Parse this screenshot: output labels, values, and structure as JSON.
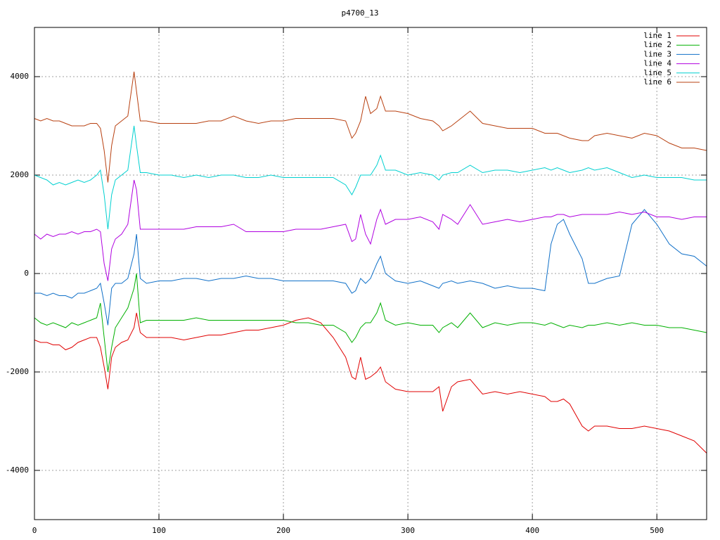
{
  "chart_data": {
    "type": "line",
    "title": "p4700_13",
    "x": [
      0,
      5,
      10,
      15,
      20,
      25,
      30,
      35,
      40,
      45,
      50,
      53,
      56,
      59,
      62,
      65,
      70,
      75,
      80,
      82,
      85,
      90,
      100,
      110,
      120,
      130,
      140,
      150,
      160,
      170,
      180,
      190,
      200,
      210,
      220,
      230,
      240,
      250,
      255,
      258,
      262,
      266,
      270,
      275,
      278,
      282,
      290,
      300,
      310,
      320,
      325,
      328,
      335,
      340,
      350,
      360,
      370,
      380,
      390,
      400,
      410,
      415,
      420,
      425,
      430,
      440,
      445,
      450,
      460,
      470,
      480,
      490,
      500,
      510,
      520,
      530,
      540
    ],
    "series": [
      {
        "name": "line 1",
        "color": "#e00000",
        "values": [
          -1350,
          -1400,
          -1400,
          -1450,
          -1450,
          -1550,
          -1500,
          -1400,
          -1350,
          -1300,
          -1300,
          -1500,
          -1900,
          -2350,
          -1700,
          -1500,
          -1400,
          -1350,
          -1100,
          -800,
          -1200,
          -1300,
          -1300,
          -1300,
          -1350,
          -1300,
          -1250,
          -1250,
          -1200,
          -1150,
          -1150,
          -1100,
          -1050,
          -950,
          -900,
          -1000,
          -1300,
          -1700,
          -2100,
          -2150,
          -1700,
          -2150,
          -2100,
          -2000,
          -1900,
          -2200,
          -2350,
          -2400,
          -2400,
          -2400,
          -2300,
          -2800,
          -2300,
          -2200,
          -2150,
          -2450,
          -2400,
          -2450,
          -2400,
          -2450,
          -2500,
          -2600,
          -2600,
          -2550,
          -2650,
          -3100,
          -3200,
          -3100,
          -3100,
          -3150,
          -3150,
          -3100,
          -3150,
          -3200,
          -3300,
          -3400,
          -3650
        ]
      },
      {
        "name": "line 2",
        "color": "#00b000",
        "values": [
          -900,
          -1000,
          -1050,
          -1000,
          -1050,
          -1100,
          -1000,
          -1050,
          -1000,
          -950,
          -900,
          -600,
          -1300,
          -2000,
          -1500,
          -1100,
          -900,
          -700,
          -300,
          0,
          -1000,
          -950,
          -950,
          -950,
          -950,
          -900,
          -950,
          -950,
          -950,
          -950,
          -950,
          -950,
          -950,
          -1000,
          -1000,
          -1050,
          -1050,
          -1200,
          -1400,
          -1300,
          -1100,
          -1000,
          -1000,
          -800,
          -600,
          -950,
          -1050,
          -1000,
          -1050,
          -1050,
          -1200,
          -1100,
          -1000,
          -1100,
          -800,
          -1100,
          -1000,
          -1050,
          -1000,
          -1000,
          -1050,
          -1000,
          -1050,
          -1100,
          -1050,
          -1100,
          -1050,
          -1050,
          -1000,
          -1050,
          -1000,
          -1050,
          -1050,
          -1100,
          -1100,
          -1150,
          -1200
        ]
      },
      {
        "name": "line 3",
        "color": "#1070c8",
        "values": [
          -400,
          -400,
          -450,
          -400,
          -450,
          -450,
          -500,
          -400,
          -400,
          -350,
          -300,
          -200,
          -600,
          -1050,
          -300,
          -200,
          -200,
          -100,
          400,
          800,
          -100,
          -200,
          -150,
          -150,
          -100,
          -100,
          -150,
          -100,
          -100,
          -50,
          -100,
          -100,
          -150,
          -150,
          -150,
          -150,
          -150,
          -200,
          -400,
          -350,
          -100,
          -200,
          -100,
          200,
          350,
          0,
          -150,
          -200,
          -150,
          -250,
          -300,
          -200,
          -150,
          -200,
          -150,
          -200,
          -300,
          -250,
          -300,
          -300,
          -350,
          600,
          1000,
          1100,
          800,
          300,
          -200,
          -200,
          -100,
          -50,
          1000,
          1300,
          1000,
          600,
          400,
          350,
          150
        ]
      },
      {
        "name": "line 4",
        "color": "#b000e0",
        "values": [
          800,
          700,
          800,
          750,
          800,
          800,
          850,
          800,
          850,
          850,
          900,
          850,
          200,
          -150,
          500,
          700,
          800,
          1000,
          1900,
          1700,
          900,
          900,
          900,
          900,
          900,
          950,
          950,
          950,
          1000,
          850,
          850,
          850,
          850,
          900,
          900,
          900,
          950,
          1000,
          650,
          700,
          1200,
          800,
          600,
          1100,
          1300,
          1000,
          1100,
          1100,
          1150,
          1050,
          900,
          1200,
          1100,
          1000,
          1400,
          1000,
          1050,
          1100,
          1050,
          1100,
          1150,
          1150,
          1200,
          1200,
          1150,
          1200,
          1200,
          1200,
          1200,
          1250,
          1200,
          1250,
          1150,
          1150,
          1100,
          1150,
          1150
        ]
      },
      {
        "name": "line 5",
        "color": "#00d0d0",
        "values": [
          2000,
          1950,
          1900,
          1800,
          1850,
          1800,
          1850,
          1900,
          1850,
          1900,
          2000,
          2100,
          1600,
          900,
          1600,
          1900,
          2000,
          2100,
          3000,
          2600,
          2050,
          2050,
          2000,
          2000,
          1950,
          2000,
          1950,
          2000,
          2000,
          1950,
          1950,
          2000,
          1950,
          1950,
          1950,
          1950,
          1950,
          1800,
          1600,
          1750,
          2000,
          2000,
          2000,
          2200,
          2400,
          2100,
          2100,
          2000,
          2050,
          2000,
          1900,
          2000,
          2050,
          2050,
          2200,
          2050,
          2100,
          2100,
          2050,
          2100,
          2150,
          2100,
          2150,
          2100,
          2050,
          2100,
          2150,
          2100,
          2150,
          2050,
          1950,
          2000,
          1950,
          1950,
          1950,
          1900,
          1900
        ]
      },
      {
        "name": "line 6",
        "color": "#b84010",
        "values": [
          3150,
          3100,
          3150,
          3100,
          3100,
          3050,
          3000,
          3000,
          3000,
          3050,
          3050,
          2950,
          2500,
          1850,
          2600,
          3000,
          3100,
          3200,
          4100,
          3700,
          3100,
          3100,
          3050,
          3050,
          3050,
          3050,
          3100,
          3100,
          3200,
          3100,
          3050,
          3100,
          3100,
          3150,
          3150,
          3150,
          3150,
          3100,
          2750,
          2850,
          3100,
          3600,
          3250,
          3350,
          3600,
          3300,
          3300,
          3250,
          3150,
          3100,
          3000,
          2900,
          3000,
          3100,
          3300,
          3050,
          3000,
          2950,
          2950,
          2950,
          2850,
          2850,
          2850,
          2800,
          2750,
          2700,
          2700,
          2800,
          2850,
          2800,
          2750,
          2850,
          2800,
          2650,
          2550,
          2550,
          2500
        ]
      }
    ],
    "xlim": [
      0,
      540
    ],
    "xticks": [
      0,
      100,
      200,
      300,
      400,
      500
    ],
    "ylim": [
      -5000,
      5000
    ],
    "yticks": [
      -4000,
      -2000,
      0,
      2000,
      4000
    ],
    "grid": true,
    "legend": "top-right"
  }
}
